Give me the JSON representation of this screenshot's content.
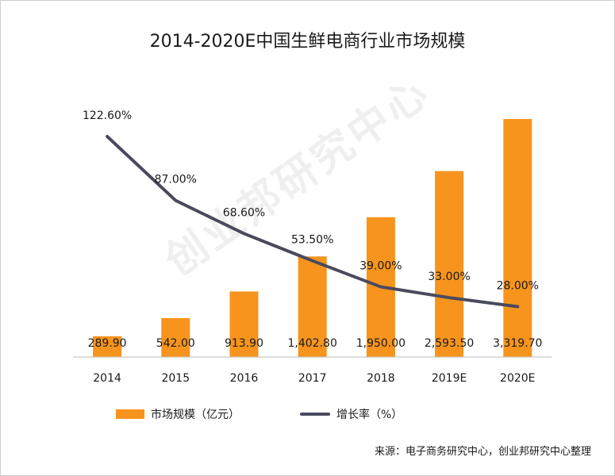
{
  "chart_data": {
    "type": "bar+line",
    "title": "2014-2020E中国生鲜电商行业市场规模",
    "categories": [
      "2014",
      "2015",
      "2016",
      "2017",
      "2018",
      "2019E",
      "2020E"
    ],
    "series": [
      {
        "name": "市场规模（亿元）",
        "type": "bar",
        "color": "#F7941D",
        "values": [
          289.9,
          542.0,
          913.9,
          1402.8,
          1950.0,
          2593.5,
          3319.7
        ],
        "labels": [
          "289.90",
          "542.00",
          "913.90",
          "1,402.80",
          "1,950.00",
          "2,593.50",
          "3,319.70"
        ]
      },
      {
        "name": "增长率（%）",
        "type": "line",
        "color": "#4a4a5e",
        "values": [
          122.6,
          87.0,
          68.6,
          53.5,
          39.0,
          33.0,
          28.0
        ],
        "labels": [
          "122.60%",
          "87.00%",
          "68.60%",
          "53.50%",
          "39.00%",
          "33.00%",
          "28.00%"
        ]
      }
    ],
    "ylim_bar": [
      0,
      3500
    ],
    "ylim_line": [
      0,
      150
    ],
    "legend": "bottom",
    "source": "来源：电子商务研究中心，创业邦研究中心整理",
    "watermark": "创业邦研究中心"
  }
}
